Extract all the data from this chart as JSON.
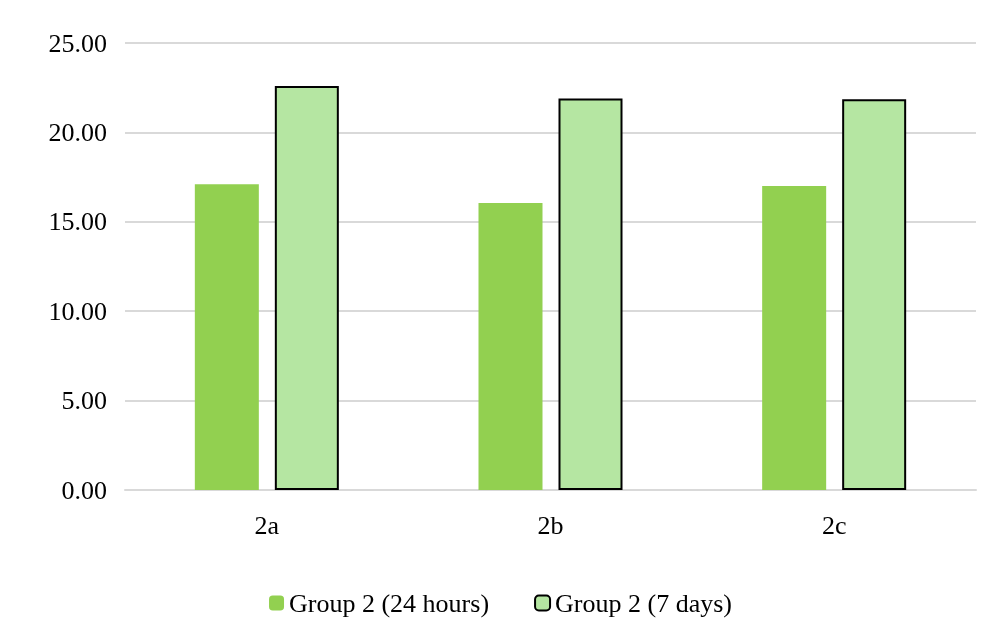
{
  "chart_data": {
    "type": "bar",
    "categories": [
      "2a",
      "2b",
      "2c"
    ],
    "series": [
      {
        "name": "Group 2 (24 hours)",
        "color": "#92d050",
        "values": [
          17.1,
          16.05,
          17.0
        ]
      },
      {
        "name": "Group 2 (7 days)",
        "color": "#b5e6a2",
        "values": [
          22.6,
          21.9,
          21.85
        ]
      }
    ],
    "ylim": [
      0,
      25
    ],
    "yticks": [
      {
        "value": 0,
        "label": "0.00"
      },
      {
        "value": 5,
        "label": "5.00"
      },
      {
        "value": 10,
        "label": "10.00"
      },
      {
        "value": 15,
        "label": "15.00"
      },
      {
        "value": 20,
        "label": "20.00"
      },
      {
        "value": 25,
        "label": "25.00"
      }
    ],
    "grid": "y",
    "legend": "bottom"
  }
}
